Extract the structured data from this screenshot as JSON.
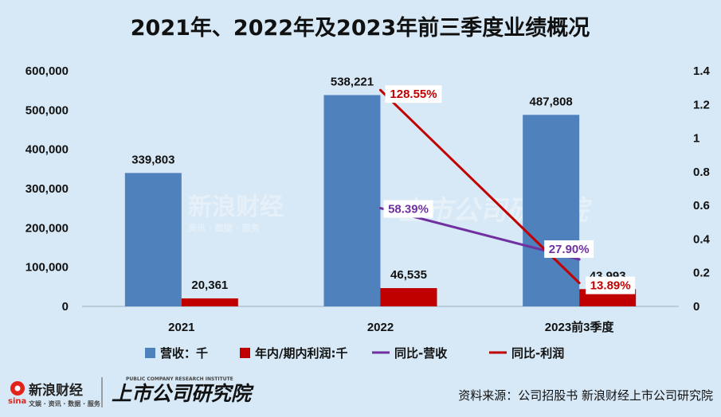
{
  "chart_data": {
    "type": "bar",
    "title": "2021年、2022年及2023年前三季度业绩概况",
    "categories": [
      "2021",
      "2022",
      "2023前3季度"
    ],
    "series": [
      {
        "name": "营收：千",
        "kind": "bar",
        "axis": "left",
        "color": "#4f81bd",
        "values": [
          339803,
          538221,
          487808
        ],
        "labels": [
          "339,803",
          "538,221",
          "487,808"
        ]
      },
      {
        "name": "年内/期内利润:千",
        "kind": "bar",
        "axis": "left",
        "color": "#c00000",
        "values": [
          20361,
          46535,
          43993
        ],
        "labels": [
          "20,361",
          "46,535",
          "43,993"
        ]
      },
      {
        "name": "同比-营收",
        "kind": "line",
        "axis": "right",
        "color": "#7030a0",
        "values": [
          null,
          0.5839,
          0.279
        ],
        "labels": [
          null,
          "58.39%",
          "27.90%"
        ]
      },
      {
        "name": "同比-利润",
        "kind": "line",
        "axis": "right",
        "color": "#c00000",
        "values": [
          null,
          1.2855,
          0.1389
        ],
        "labels": [
          null,
          "128.55%",
          "13.89%"
        ]
      }
    ],
    "y_left": {
      "min": 0,
      "max": 600000,
      "step": 100000,
      "ticks": [
        "0",
        "100,000",
        "200,000",
        "300,000",
        "400,000",
        "500,000",
        "600,000"
      ]
    },
    "y_right": {
      "min": 0,
      "max": 1.4,
      "step": 0.2,
      "ticks": [
        "0",
        "0.2",
        "0.4",
        "0.6",
        "0.8",
        "1",
        "1.2",
        "1.4"
      ]
    },
    "legend_position": "bottom"
  },
  "footer": {
    "source": "资料来源：公司招股书 新浪财经上市公司研究院",
    "brand_sina": "新浪财经",
    "brand_sina_small": "sina",
    "brand_sub": "文娱 · 资讯 · 数据 · 服务",
    "brand_institute": "上市公司研究院",
    "brand_institute_en": "PUBLIC COMPANY RESEARCH INSTITUTE"
  },
  "watermark": {
    "sina": "新浪财经",
    "sina_sub": "资讯 · 数据 · 服务",
    "institute": "上市公司研究院"
  },
  "colors": {
    "background": "#d7e9f6",
    "revenue": "#4f81bd",
    "profit": "#c00000",
    "yoy_revenue": "#7030a0",
    "yoy_profit": "#c00000"
  }
}
